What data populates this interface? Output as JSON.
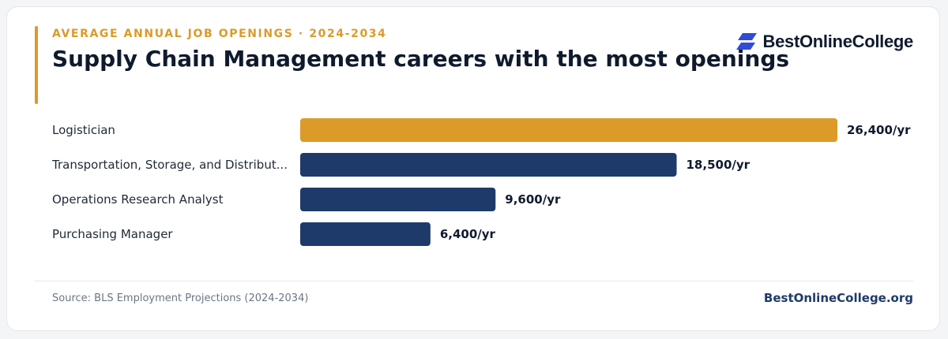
{
  "header": {
    "eyebrow": "AVERAGE ANNUAL JOB OPENINGS · 2024-2034",
    "title": "Supply Chain Management careers with the most openings",
    "brand_name": "BestOnlineCollege"
  },
  "footer": {
    "source": "Source: BLS Employment Projections (2024-2034)",
    "site": "BestOnlineCollege.org"
  },
  "colors": {
    "highlight": "#dc9a28",
    "bar": "#1e3a6b",
    "brand_icon": "#2f4bd8",
    "text": "#0f1a2e"
  },
  "chart_data": {
    "type": "bar",
    "orientation": "horizontal",
    "categories": [
      "Logistician",
      "Transportation, Storage, and Distribut...",
      "Operations Research Analyst",
      "Purchasing Manager"
    ],
    "values": [
      26400,
      18500,
      9600,
      6400
    ],
    "value_labels": [
      "26,400/yr",
      "18,500/yr",
      "9,600/yr",
      "6,400/yr"
    ],
    "highlighted_index": 0,
    "xlim": [
      0,
      26400
    ],
    "grid": false,
    "legend": "none"
  }
}
